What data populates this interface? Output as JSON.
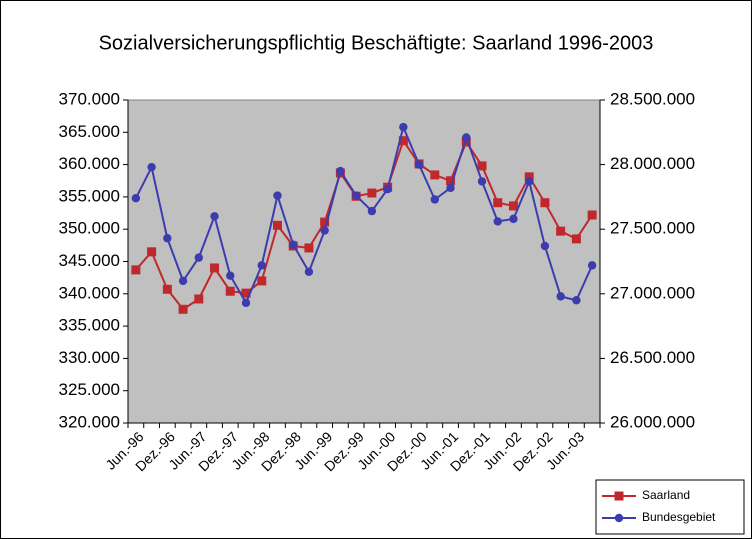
{
  "chart_data": {
    "type": "line",
    "title": "Sozialversicherungspflichtig Beschäftigte: Saarland 1996-2003",
    "categories": [
      "Jun.-96",
      null,
      "Dez.-96",
      null,
      "Jun.-97",
      null,
      "Dez.-97",
      null,
      "Jun.-98",
      null,
      "Dez.-98",
      null,
      "Jun.-99",
      null,
      "Dez.-99",
      null,
      "Jun.-00",
      null,
      "Dez.-00",
      null,
      "Jun.-01",
      null,
      "Dez.-01",
      null,
      "Jun.-02",
      null,
      "Dez.-02",
      null,
      "Jun.-03",
      null
    ],
    "series": [
      {
        "name": "Saarland",
        "color": "#c0282d",
        "marker": "square",
        "values": [
          343700,
          346500,
          340700,
          337600,
          339200,
          344000,
          340400,
          340100,
          342000,
          350600,
          347400,
          347100,
          351100,
          358700,
          355100,
          355600,
          356500,
          363700,
          360100,
          358400,
          357500,
          363500,
          359800,
          354100,
          353600,
          358100,
          354100,
          349700,
          348500,
          352200
        ]
      },
      {
        "name": "Bundesgebiet",
        "color": "#3c3caf",
        "marker": "circle",
        "axis": "y2",
        "values": [
          27740000,
          27980000,
          27430000,
          27100000,
          27280000,
          27600000,
          27140000,
          26930000,
          27220000,
          27760000,
          27380000,
          27170000,
          27490000,
          27950000,
          27760000,
          27640000,
          27810000,
          28290000,
          28000000,
          27730000,
          27820000,
          28210000,
          27870000,
          27560000,
          27580000,
          27870000,
          27370000,
          26980000,
          26950000,
          27220000
        ]
      }
    ],
    "ylim": [
      320000,
      370000
    ],
    "yticks": [
      {
        "value": 320000,
        "label": "320.000"
      },
      {
        "value": 325000,
        "label": "325.000"
      },
      {
        "value": 330000,
        "label": "330.000"
      },
      {
        "value": 335000,
        "label": "335.000"
      },
      {
        "value": 340000,
        "label": "340.000"
      },
      {
        "value": 345000,
        "label": "345.000"
      },
      {
        "value": 350000,
        "label": "350.000"
      },
      {
        "value": 355000,
        "label": "355.000"
      },
      {
        "value": 360000,
        "label": "360.000"
      },
      {
        "value": 365000,
        "label": "365.000"
      },
      {
        "value": 370000,
        "label": "370.000"
      }
    ],
    "y2lim": [
      26000000,
      28500000
    ],
    "y2ticks": [
      {
        "value": 26000000,
        "label": "26.000.000"
      },
      {
        "value": 26500000,
        "label": "26.500.000"
      },
      {
        "value": 27000000,
        "label": "27.000.000"
      },
      {
        "value": 27500000,
        "label": "27.500.000"
      },
      {
        "value": 28000000,
        "label": "28.000.000"
      },
      {
        "value": 28500000,
        "label": "28.500.000"
      }
    ],
    "legend": "bottom-right",
    "plot_background": "#c0c0c0"
  }
}
